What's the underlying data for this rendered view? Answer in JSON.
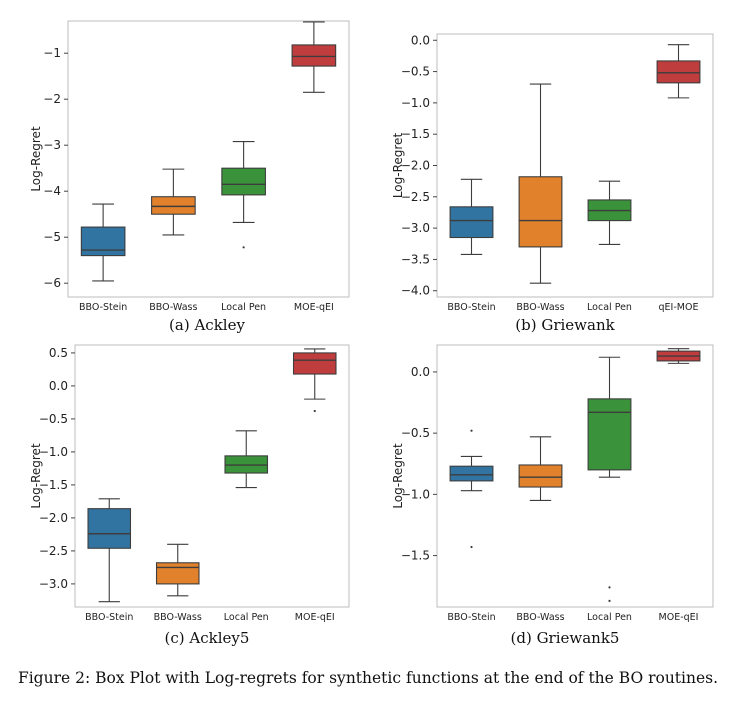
{
  "caption": "Figure 2: Box Plot with Log-regrets for synthetic functions at the end of the BO routines.",
  "chart_data": [
    {
      "type": "box",
      "caption": "(a) Ackley",
      "ylabel": "Log-Regret",
      "ylim": [
        -6.3,
        -0.3
      ],
      "yticks": [
        -6,
        -5,
        -4,
        -3,
        -2,
        -1
      ],
      "ytick_labels": [
        "−6",
        "−5",
        "−4",
        "−3",
        "−2",
        "−1"
      ],
      "categories": [
        "BBO-Stein",
        "BBO-Wass",
        "Local Pen",
        "MOE-qEI"
      ],
      "boxes": [
        {
          "color": "#3274a1",
          "whislo": -5.95,
          "q1": -5.4,
          "med": -5.28,
          "q3": -4.78,
          "whishi": -4.28,
          "fliers": []
        },
        {
          "color": "#e1812c",
          "whislo": -4.95,
          "q1": -4.5,
          "med": -4.33,
          "q3": -4.12,
          "whishi": -3.52,
          "fliers": []
        },
        {
          "color": "#3a923a",
          "whislo": -4.68,
          "q1": -4.08,
          "med": -3.85,
          "q3": -3.5,
          "whishi": -2.92,
          "fliers": [
            -5.22
          ]
        },
        {
          "color": "#c03d3e",
          "whislo": -1.85,
          "q1": -1.28,
          "med": -1.07,
          "q3": -0.82,
          "whishi": -0.32,
          "fliers": []
        }
      ]
    },
    {
      "type": "box",
      "caption": "(b) Griewank",
      "ylabel": "Log-Regret",
      "ylim": [
        -4.1,
        0.1
      ],
      "yticks": [
        0.0,
        -0.5,
        -1.0,
        -1.5,
        -2.0,
        -2.5,
        -3.0,
        -3.5,
        -4.0
      ],
      "ytick_labels": [
        "0.0",
        "−0.5",
        "−1.0",
        "−1.5",
        "−2.0",
        "−2.5",
        "−3.0",
        "−3.5",
        "−4.0"
      ],
      "categories": [
        "BBO-Stein",
        "BBO-Wass",
        "Local Pen",
        "qEI-MOE"
      ],
      "boxes": [
        {
          "color": "#3274a1",
          "whislo": -3.42,
          "q1": -3.15,
          "med": -2.88,
          "q3": -2.66,
          "whishi": -2.22,
          "fliers": []
        },
        {
          "color": "#e1812c",
          "whislo": -3.88,
          "q1": -3.3,
          "med": -2.88,
          "q3": -2.18,
          "whishi": -0.7,
          "fliers": []
        },
        {
          "color": "#3a923a",
          "whislo": -3.26,
          "q1": -2.88,
          "med": -2.72,
          "q3": -2.55,
          "whishi": -2.25,
          "fliers": []
        },
        {
          "color": "#c03d3e",
          "whislo": -0.92,
          "q1": -0.68,
          "med": -0.52,
          "q3": -0.33,
          "whishi": -0.07,
          "fliers": []
        }
      ]
    },
    {
      "type": "box",
      "caption": "(c) Ackley5",
      "ylabel": "Log-Regret",
      "ylim": [
        -3.35,
        0.62
      ],
      "yticks": [
        0.5,
        0.0,
        -0.5,
        -1.0,
        -1.5,
        -2.0,
        -2.5,
        -3.0
      ],
      "ytick_labels": [
        "0.5",
        "0.0",
        "−0.5",
        "−1.0",
        "−1.5",
        "−2.0",
        "−2.5",
        "−3.0"
      ],
      "categories": [
        "BBO-Stein",
        "BBO-Wass",
        "Local Pen",
        "MOE-qEI"
      ],
      "boxes": [
        {
          "color": "#3274a1",
          "whislo": -3.27,
          "q1": -2.46,
          "med": -2.24,
          "q3": -1.86,
          "whishi": -1.71,
          "fliers": []
        },
        {
          "color": "#e1812c",
          "whislo": -3.18,
          "q1": -3.0,
          "med": -2.75,
          "q3": -2.68,
          "whishi": -2.4,
          "fliers": []
        },
        {
          "color": "#3a923a",
          "whislo": -1.54,
          "q1": -1.32,
          "med": -1.2,
          "q3": -1.06,
          "whishi": -0.68,
          "fliers": []
        },
        {
          "color": "#c03d3e",
          "whislo": -0.2,
          "q1": 0.18,
          "med": 0.39,
          "q3": 0.5,
          "whishi": 0.56,
          "fliers": [
            -0.38
          ]
        }
      ]
    },
    {
      "type": "box",
      "caption": "(d) Griewank5",
      "ylabel": "Log-Regret",
      "ylim": [
        -1.92,
        0.22
      ],
      "yticks": [
        0.0,
        -0.5,
        -1.0,
        -1.5
      ],
      "ytick_labels": [
        "0.0",
        "−0.5",
        "−1.0",
        "−1.5"
      ],
      "categories": [
        "BBO-Stein",
        "BBO-Wass",
        "Local Pen",
        "MOE-qEI"
      ],
      "boxes": [
        {
          "color": "#3274a1",
          "whislo": -0.97,
          "q1": -0.89,
          "med": -0.84,
          "q3": -0.77,
          "whishi": -0.69,
          "fliers": [
            -0.48,
            -1.43
          ]
        },
        {
          "color": "#e1812c",
          "whislo": -1.05,
          "q1": -0.94,
          "med": -0.86,
          "q3": -0.76,
          "whishi": -0.53,
          "fliers": []
        },
        {
          "color": "#3a923a",
          "whislo": -0.86,
          "q1": -0.8,
          "med": -0.33,
          "q3": -0.22,
          "whishi": 0.12,
          "fliers": [
            -1.76,
            -1.87
          ]
        },
        {
          "color": "#c03d3e",
          "whislo": 0.07,
          "q1": 0.09,
          "med": 0.13,
          "q3": 0.17,
          "whishi": 0.19,
          "fliers": []
        }
      ]
    }
  ]
}
